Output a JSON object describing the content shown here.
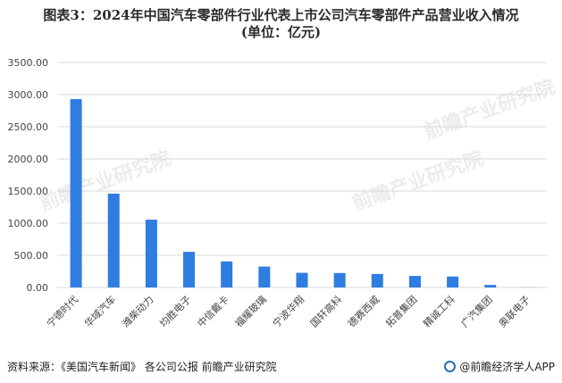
{
  "title": {
    "line1": "图表3：2024年中国汽车零部件行业代表上市公司汽车零部件产品营业收入情况",
    "line2": "(单位：亿元)"
  },
  "footer": {
    "source": "资料来源：《美国汽车新闻》 各公司公报 前瞻产业研究院",
    "brand": "@前瞻经济学人APP"
  },
  "watermark": {
    "text": "前瞻产业研究院"
  },
  "colors": {
    "bar": "#2f7de1",
    "grid": "#d9d9d9"
  },
  "chart_data": {
    "type": "bar",
    "categories": [
      "宁德时代",
      "华域汽车",
      "潍柴动力",
      "均胜电子",
      "中信戴卡",
      "福耀玻璃",
      "宁波华翔",
      "国轩高科",
      "德赛西威",
      "拓普集团",
      "精诚工科",
      "广汽集团",
      "奥联电子"
    ],
    "values": [
      2930,
      1460,
      1055,
      555,
      405,
      325,
      228,
      225,
      210,
      180,
      170,
      40,
      2
    ],
    "ylim": [
      0,
      3500
    ],
    "yticks": [
      "0.00",
      "500.00",
      "1000.00",
      "1500.00",
      "2000.00",
      "2500.00",
      "3000.00",
      "3500.00"
    ],
    "grid": true,
    "legend": "none"
  }
}
